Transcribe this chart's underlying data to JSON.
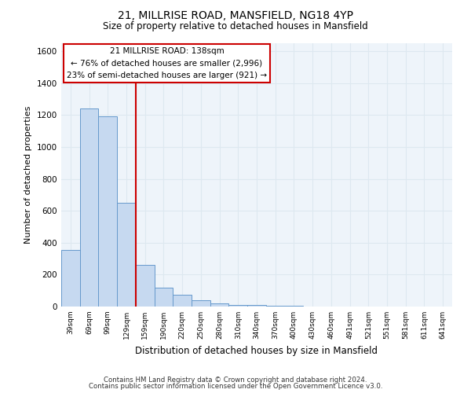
{
  "title_line1": "21, MILLRISE ROAD, MANSFIELD, NG18 4YP",
  "title_line2": "Size of property relative to detached houses in Mansfield",
  "xlabel": "Distribution of detached houses by size in Mansfield",
  "ylabel": "Number of detached properties",
  "footer_line1": "Contains HM Land Registry data © Crown copyright and database right 2024.",
  "footer_line2": "Contains public sector information licensed under the Open Government Licence v3.0.",
  "categories": [
    "39sqm",
    "69sqm",
    "99sqm",
    "129sqm",
    "159sqm",
    "190sqm",
    "220sqm",
    "250sqm",
    "280sqm",
    "310sqm",
    "340sqm",
    "370sqm",
    "400sqm",
    "430sqm",
    "460sqm",
    "491sqm",
    "521sqm",
    "551sqm",
    "581sqm",
    "611sqm",
    "641sqm"
  ],
  "values": [
    355,
    1240,
    1190,
    648,
    263,
    118,
    72,
    38,
    22,
    12,
    8,
    5,
    3,
    2,
    2,
    1,
    1,
    1,
    1,
    1,
    1
  ],
  "bar_color": "#c6d9f0",
  "bar_edge_color": "#6699cc",
  "red_line_x": 3.5,
  "annotation_line1": "21 MILLRISE ROAD: 138sqm",
  "annotation_line2": "← 76% of detached houses are smaller (2,996)",
  "annotation_line3": "23% of semi-detached houses are larger (921) →",
  "annotation_box_color": "#ffffff",
  "annotation_box_edge_color": "#cc0000",
  "red_line_color": "#cc0000",
  "ylim": [
    0,
    1650
  ],
  "yticks": [
    0,
    200,
    400,
    600,
    800,
    1000,
    1200,
    1400,
    1600
  ],
  "grid_color": "#dde8f0",
  "background_color": "#eef4fa",
  "fig_bg": "#ffffff"
}
